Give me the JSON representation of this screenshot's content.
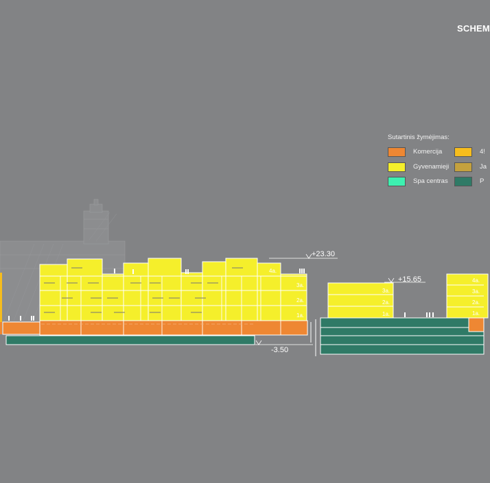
{
  "title": "SCHEM",
  "legend": {
    "title": "Sutartinis žymėjimas:",
    "items": [
      {
        "label": "Komercija",
        "color": "#ee8733"
      },
      {
        "label": "Gyvenamieji",
        "color": "#f5ef2b"
      },
      {
        "label": "Spa centras",
        "color": "#3df0b0"
      },
      {
        "label": "4!",
        "color": "#f7bd1d"
      },
      {
        "label": "Ja",
        "color": "#c4a13e"
      },
      {
        "label": "P",
        "color": "#2f7a66"
      }
    ]
  },
  "elevations": {
    "top_left": "+23.30",
    "top_right": "+15.65",
    "underground": "-3.50"
  },
  "floor_labels": {
    "f4": "4a.",
    "f3": "3a.",
    "f2": "2a.",
    "f1": "1a."
  }
}
